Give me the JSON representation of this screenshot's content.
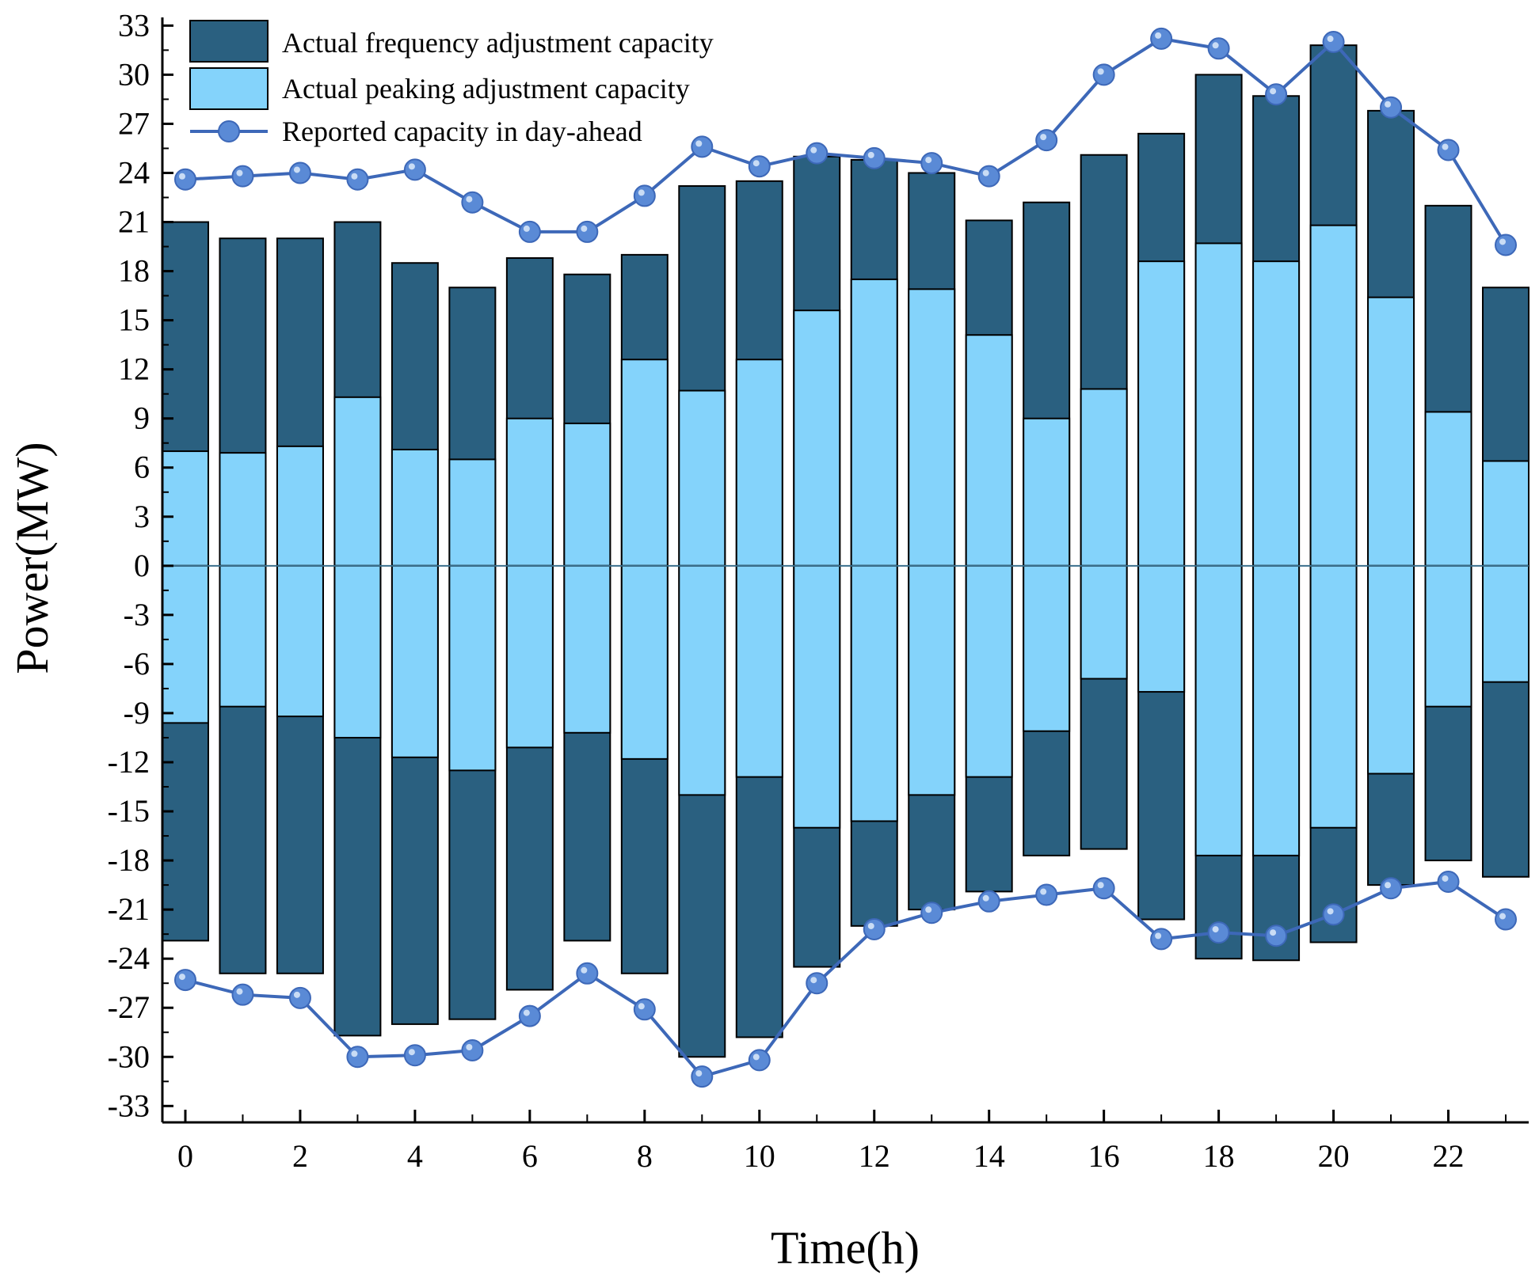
{
  "chart_data": {
    "type": "bar",
    "xlabel": "Time(h)",
    "ylabel": "Power(MW)",
    "xlim": [
      -0.4,
      23.4
    ],
    "ylim": [
      -34,
      33.5
    ],
    "x_ticks": [
      0,
      2,
      4,
      6,
      8,
      10,
      12,
      14,
      16,
      18,
      20,
      22
    ],
    "y_ticks": [
      33,
      30,
      27,
      24,
      21,
      18,
      15,
      12,
      9,
      6,
      3,
      0,
      -3,
      -6,
      -9,
      -12,
      -15,
      -18,
      -21,
      -24,
      -27,
      -30,
      -33
    ],
    "legend_position": "top-left",
    "colors": {
      "frequency": "#2a6080",
      "peaking": "#84d3fb",
      "reported": "#3d68b8",
      "marker": "#5a8ad6"
    },
    "hours": [
      0,
      1,
      2,
      3,
      4,
      5,
      6,
      7,
      8,
      9,
      10,
      11,
      12,
      13,
      14,
      15,
      16,
      17,
      18,
      19,
      20,
      21,
      22,
      23
    ],
    "series": [
      {
        "name": "Actual frequency adjustment capacity",
        "kind": "bar",
        "upper": [
          21.0,
          20.0,
          20.0,
          21.0,
          18.5,
          17.0,
          18.8,
          17.8,
          19.0,
          23.2,
          23.5,
          25.0,
          24.8,
          24.0,
          21.1,
          22.2,
          25.1,
          26.4,
          30.0,
          28.7,
          31.8,
          27.8,
          22.0,
          17.0
        ],
        "lower": [
          -22.9,
          -24.9,
          -24.9,
          -28.7,
          -28.0,
          -27.7,
          -25.9,
          -22.9,
          -24.9,
          -30.0,
          -28.8,
          -24.5,
          -22.0,
          -21.0,
          -19.9,
          -17.7,
          -17.3,
          -21.6,
          -24.0,
          -24.1,
          -23.0,
          -19.5,
          -18.0,
          -19.0
        ]
      },
      {
        "name": "Actual peaking adjustment capacity",
        "kind": "bar",
        "upper": [
          7.0,
          6.9,
          7.3,
          10.3,
          7.1,
          6.5,
          9.0,
          8.7,
          12.6,
          10.7,
          12.6,
          15.6,
          17.5,
          16.9,
          14.1,
          9.0,
          10.8,
          18.6,
          19.7,
          18.6,
          20.8,
          16.4,
          9.4,
          6.4
        ],
        "lower": [
          -9.6,
          -8.6,
          -9.2,
          -10.5,
          -11.7,
          -12.5,
          -11.1,
          -10.2,
          -11.8,
          -14.0,
          -12.9,
          -16.0,
          -15.6,
          -14.0,
          -12.9,
          -10.1,
          -6.9,
          -7.7,
          -17.7,
          -17.7,
          -16.0,
          -12.7,
          -8.6,
          -7.1
        ]
      },
      {
        "name": "Reported capacity in day-ahead",
        "kind": "line",
        "upper": [
          23.6,
          23.8,
          24.0,
          23.6,
          24.2,
          22.2,
          20.4,
          20.4,
          22.6,
          25.6,
          24.4,
          25.2,
          24.9,
          24.6,
          23.8,
          26.0,
          30.0,
          32.2,
          31.6,
          28.8,
          32.0,
          28.0,
          25.4,
          19.6
        ],
        "lower": [
          -25.3,
          -26.2,
          -26.4,
          -30.0,
          -29.9,
          -29.6,
          -27.5,
          -24.9,
          -27.1,
          -31.2,
          -30.2,
          -25.5,
          -22.2,
          -21.2,
          -20.5,
          -20.1,
          -19.7,
          -22.8,
          -22.4,
          -22.6,
          -21.3,
          -19.7,
          -19.3,
          -21.6
        ]
      }
    ]
  }
}
